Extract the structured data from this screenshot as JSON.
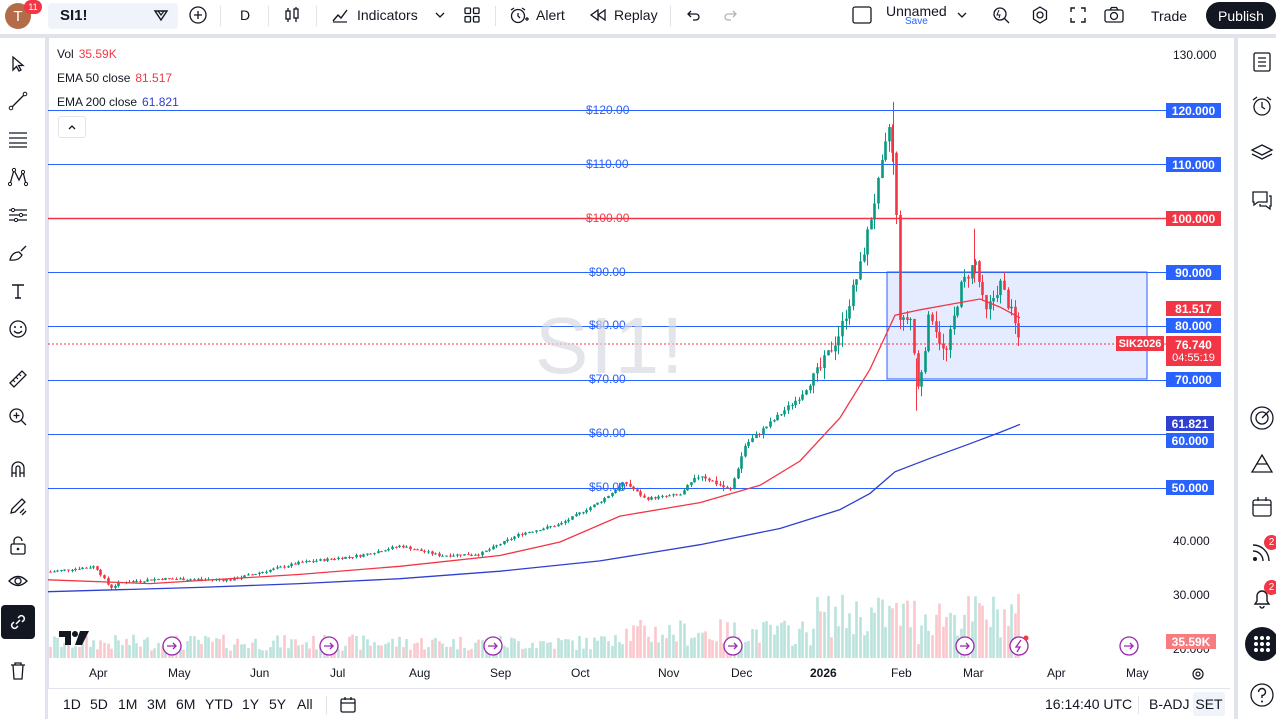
{
  "header": {
    "avatar_letter": "T",
    "avatar_badge": "11",
    "symbol": "SI1!",
    "interval": "D",
    "indicators_label": "Indicators",
    "alert_label": "Alert",
    "replay_label": "Replay",
    "layout_name": "Unnamed",
    "layout_save": "Save",
    "trade_label": "Trade",
    "publish_label": "Publish"
  },
  "legend": {
    "vol_label": "Vol",
    "vol_value": "35.59K",
    "ema50_label": "EMA 50 close",
    "ema50_value": "81.517",
    "ema200_label": "EMA 200 close",
    "ema200_value": "61.821"
  },
  "watermark": "SI1!",
  "right_axis": {
    "ticks": [
      "130.000",
      "40.000",
      "30.000",
      "20.000"
    ],
    "tag_120": "120.000",
    "tag_110": "110.000",
    "tag_100": "100.000",
    "tag_90": "90.000",
    "tag_ema50": "81.517",
    "tag_80": "80.000",
    "tag_price": "76.740",
    "tag_countdown": "04:55:19",
    "tag_contract": "SIK2026",
    "tag_70": "70.000",
    "tag_ema200": "61.821",
    "tag_60": "60.000",
    "tag_50": "50.000",
    "tag_vol": "35.59K"
  },
  "hline_labels": {
    "l120": "$120.00",
    "l110": "$110.00",
    "l100": "$100.00",
    "l90": "$90.00",
    "l80": "$80.00",
    "l70": "$70.00",
    "l60": "$60.00",
    "l50": "$50.00"
  },
  "x_axis": {
    "apr": "Apr",
    "may": "May",
    "jun": "Jun",
    "jul": "Jul",
    "aug": "Aug",
    "sep": "Sep",
    "oct": "Oct",
    "nov": "Nov",
    "dec": "Dec",
    "y2026": "2026",
    "feb": "Feb",
    "mar": "Mar",
    "apr2": "Apr",
    "may2": "May"
  },
  "bottom": {
    "r1d": "1D",
    "r5d": "5D",
    "r1m": "1M",
    "r3m": "3M",
    "r6m": "6M",
    "rytd": "YTD",
    "r1y": "1Y",
    "r5y": "5Y",
    "rall": "All",
    "time": "16:14:40 UTC",
    "badj": "B-ADJ",
    "set": "SET"
  },
  "right_badges": {
    "ideas_count": "2",
    "alerts_count": "2"
  },
  "colors": {
    "blue_line": "#2962ff",
    "red_line": "#f23645",
    "up": "#089981",
    "down": "#f23645",
    "ema50": "#f23645",
    "ema200": "#2f3fcf"
  }
}
